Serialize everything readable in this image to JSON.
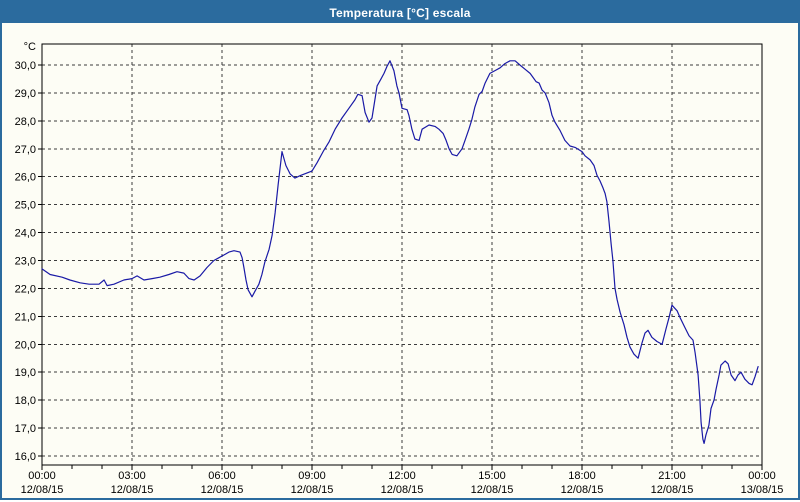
{
  "window": {
    "title": "Temperatura [°C] escala"
  },
  "colors": {
    "titlebar_bg": "#2b6b9e",
    "window_border": "#2b6b9e",
    "title_text": "#ffffff",
    "background": "#fdfdf5",
    "line": "#1a1aa6",
    "grid": "#3c3c3c",
    "axis": "#000000",
    "label_text": "#000000"
  },
  "chart_data": {
    "type": "line",
    "title": "Temperatura [°C] escala",
    "y_unit_label": "°C",
    "ylabel": "Temperatura [°C]",
    "xlabel": "",
    "ylim": [
      16.0,
      30.0
    ],
    "xlim_hours": [
      0,
      24
    ],
    "grid": "dashed gridlines every 1 degC and every 3 h; minor hourly ticks on x-axis",
    "legend_position": "none",
    "y_ticks": [
      {
        "value": 30,
        "label": "30,0"
      },
      {
        "value": 29,
        "label": "29,0"
      },
      {
        "value": 28,
        "label": "28,0"
      },
      {
        "value": 27,
        "label": "27,0"
      },
      {
        "value": 26,
        "label": "26,0"
      },
      {
        "value": 25,
        "label": "25,0"
      },
      {
        "value": 24,
        "label": "24,0"
      },
      {
        "value": 23,
        "label": "23,0"
      },
      {
        "value": 22,
        "label": "22,0"
      },
      {
        "value": 21,
        "label": "21,0"
      },
      {
        "value": 20,
        "label": "20,0"
      },
      {
        "value": 19,
        "label": "19,0"
      },
      {
        "value": 18,
        "label": "18,0"
      },
      {
        "value": 17,
        "label": "17,0"
      },
      {
        "value": 16,
        "label": "16,0"
      }
    ],
    "x_ticks": [
      {
        "hour": 0,
        "time": "00:00",
        "date": "12/08/15"
      },
      {
        "hour": 3,
        "time": "03:00",
        "date": "12/08/15"
      },
      {
        "hour": 6,
        "time": "06:00",
        "date": "12/08/15"
      },
      {
        "hour": 9,
        "time": "09:00",
        "date": "12/08/15"
      },
      {
        "hour": 12,
        "time": "12:00",
        "date": "12/08/15"
      },
      {
        "hour": 15,
        "time": "15:00",
        "date": "12/08/15"
      },
      {
        "hour": 18,
        "time": "18:00",
        "date": "12/08/15"
      },
      {
        "hour": 21,
        "time": "21:00",
        "date": "12/08/15"
      },
      {
        "hour": 24,
        "time": "00:00",
        "date": "13/08/15"
      }
    ],
    "series": [
      {
        "name": "Temperatura",
        "color": "#1a1aa6",
        "points": [
          [
            0.0,
            22.7
          ],
          [
            0.27,
            22.5
          ],
          [
            0.67,
            22.4
          ],
          [
            0.93,
            22.3
          ],
          [
            1.27,
            22.2
          ],
          [
            1.57,
            22.15
          ],
          [
            1.9,
            22.15
          ],
          [
            2.07,
            22.3
          ],
          [
            2.17,
            22.1
          ],
          [
            2.4,
            22.15
          ],
          [
            2.73,
            22.3
          ],
          [
            3.0,
            22.35
          ],
          [
            3.17,
            22.45
          ],
          [
            3.4,
            22.3
          ],
          [
            3.67,
            22.35
          ],
          [
            3.93,
            22.4
          ],
          [
            4.23,
            22.5
          ],
          [
            4.5,
            22.6
          ],
          [
            4.73,
            22.55
          ],
          [
            4.9,
            22.35
          ],
          [
            5.07,
            22.3
          ],
          [
            5.27,
            22.45
          ],
          [
            5.5,
            22.75
          ],
          [
            5.73,
            23.0
          ],
          [
            5.9,
            23.1
          ],
          [
            6.07,
            23.2
          ],
          [
            6.23,
            23.3
          ],
          [
            6.4,
            23.35
          ],
          [
            6.6,
            23.3
          ],
          [
            6.67,
            23.1
          ],
          [
            6.73,
            22.75
          ],
          [
            6.8,
            22.3
          ],
          [
            6.87,
            21.95
          ],
          [
            7.0,
            21.7
          ],
          [
            7.1,
            21.9
          ],
          [
            7.23,
            22.15
          ],
          [
            7.33,
            22.5
          ],
          [
            7.43,
            22.95
          ],
          [
            7.57,
            23.4
          ],
          [
            7.67,
            23.9
          ],
          [
            7.77,
            24.7
          ],
          [
            7.87,
            25.7
          ],
          [
            8.0,
            26.9
          ],
          [
            8.13,
            26.4
          ],
          [
            8.27,
            26.1
          ],
          [
            8.43,
            25.95
          ],
          [
            8.63,
            26.05
          ],
          [
            9.0,
            26.2
          ],
          [
            9.17,
            26.5
          ],
          [
            9.37,
            26.9
          ],
          [
            9.57,
            27.25
          ],
          [
            9.77,
            27.7
          ],
          [
            10.0,
            28.1
          ],
          [
            10.23,
            28.45
          ],
          [
            10.43,
            28.75
          ],
          [
            10.53,
            28.95
          ],
          [
            10.67,
            28.9
          ],
          [
            10.77,
            28.3
          ],
          [
            10.9,
            27.95
          ],
          [
            11.0,
            28.1
          ],
          [
            11.17,
            29.25
          ],
          [
            11.3,
            29.5
          ],
          [
            11.4,
            29.7
          ],
          [
            11.5,
            29.95
          ],
          [
            11.6,
            30.15
          ],
          [
            11.73,
            29.8
          ],
          [
            11.83,
            29.25
          ],
          [
            11.9,
            29.0
          ],
          [
            12.0,
            28.45
          ],
          [
            12.17,
            28.4
          ],
          [
            12.23,
            28.2
          ],
          [
            12.33,
            27.7
          ],
          [
            12.43,
            27.35
          ],
          [
            12.57,
            27.3
          ],
          [
            12.67,
            27.7
          ],
          [
            12.9,
            27.85
          ],
          [
            13.1,
            27.8
          ],
          [
            13.23,
            27.7
          ],
          [
            13.37,
            27.55
          ],
          [
            13.47,
            27.3
          ],
          [
            13.57,
            27.0
          ],
          [
            13.67,
            26.8
          ],
          [
            13.83,
            26.75
          ],
          [
            14.0,
            27.0
          ],
          [
            14.1,
            27.3
          ],
          [
            14.23,
            27.7
          ],
          [
            14.33,
            28.05
          ],
          [
            14.43,
            28.5
          ],
          [
            14.57,
            28.95
          ],
          [
            14.67,
            29.05
          ],
          [
            14.77,
            29.35
          ],
          [
            14.93,
            29.7
          ],
          [
            15.1,
            29.8
          ],
          [
            15.27,
            29.9
          ],
          [
            15.43,
            30.05
          ],
          [
            15.6,
            30.15
          ],
          [
            15.77,
            30.15
          ],
          [
            15.93,
            30.0
          ],
          [
            16.1,
            29.85
          ],
          [
            16.27,
            29.7
          ],
          [
            16.37,
            29.55
          ],
          [
            16.47,
            29.4
          ],
          [
            16.57,
            29.35
          ],
          [
            16.67,
            29.1
          ],
          [
            16.77,
            29.0
          ],
          [
            16.9,
            28.65
          ],
          [
            17.0,
            28.2
          ],
          [
            17.1,
            27.95
          ],
          [
            17.27,
            27.65
          ],
          [
            17.43,
            27.3
          ],
          [
            17.6,
            27.1
          ],
          [
            17.77,
            27.05
          ],
          [
            18.0,
            26.9
          ],
          [
            18.1,
            26.75
          ],
          [
            18.27,
            26.6
          ],
          [
            18.4,
            26.4
          ],
          [
            18.5,
            26.05
          ],
          [
            18.6,
            25.85
          ],
          [
            18.7,
            25.6
          ],
          [
            18.77,
            25.4
          ],
          [
            18.83,
            25.1
          ],
          [
            18.9,
            24.4
          ],
          [
            18.97,
            23.6
          ],
          [
            19.03,
            23.0
          ],
          [
            19.1,
            22.0
          ],
          [
            19.17,
            21.6
          ],
          [
            19.27,
            21.15
          ],
          [
            19.4,
            20.7
          ],
          [
            19.5,
            20.25
          ],
          [
            19.6,
            19.9
          ],
          [
            19.73,
            19.65
          ],
          [
            19.87,
            19.5
          ],
          [
            20.0,
            20.05
          ],
          [
            20.1,
            20.4
          ],
          [
            20.2,
            20.5
          ],
          [
            20.33,
            20.25
          ],
          [
            20.5,
            20.1
          ],
          [
            20.67,
            20.0
          ],
          [
            20.8,
            20.55
          ],
          [
            20.9,
            20.95
          ],
          [
            21.0,
            21.4
          ],
          [
            21.17,
            21.2
          ],
          [
            21.27,
            20.95
          ],
          [
            21.43,
            20.6
          ],
          [
            21.57,
            20.3
          ],
          [
            21.7,
            20.15
          ],
          [
            21.77,
            19.7
          ],
          [
            21.87,
            18.9
          ],
          [
            21.93,
            18.0
          ],
          [
            21.97,
            17.2
          ],
          [
            22.03,
            16.6
          ],
          [
            22.07,
            16.45
          ],
          [
            22.13,
            16.75
          ],
          [
            22.23,
            17.1
          ],
          [
            22.3,
            17.7
          ],
          [
            22.4,
            18.0
          ],
          [
            22.47,
            18.4
          ],
          [
            22.57,
            18.9
          ],
          [
            22.63,
            19.25
          ],
          [
            22.77,
            19.4
          ],
          [
            22.87,
            19.3
          ],
          [
            22.97,
            18.9
          ],
          [
            23.1,
            18.7
          ],
          [
            23.2,
            18.9
          ],
          [
            23.3,
            19.0
          ],
          [
            23.43,
            18.75
          ],
          [
            23.57,
            18.6
          ],
          [
            23.67,
            18.55
          ],
          [
            23.77,
            18.85
          ],
          [
            23.87,
            19.2
          ]
        ]
      }
    ]
  }
}
